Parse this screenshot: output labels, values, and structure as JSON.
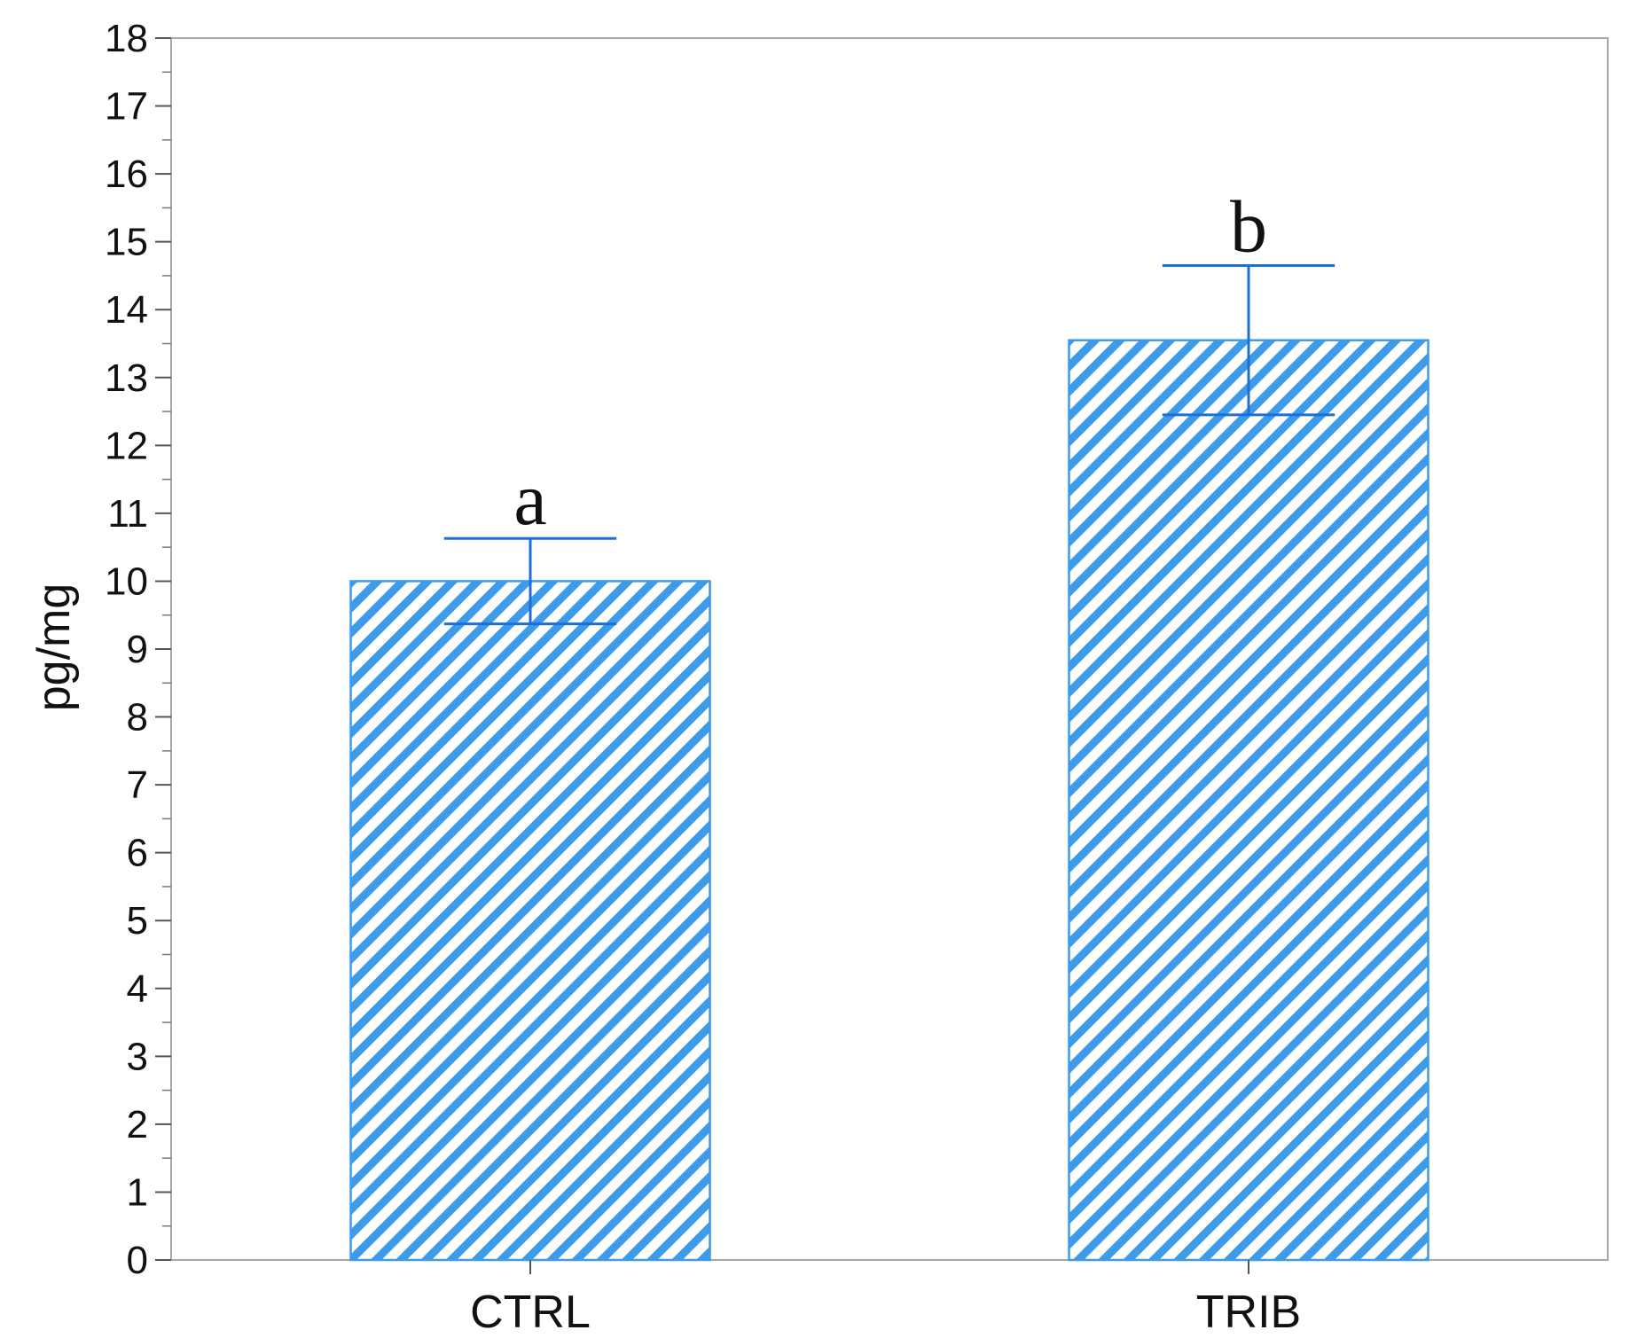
{
  "chart_data": {
    "type": "bar",
    "categories": [
      "CTRL",
      "TRIB"
    ],
    "values": [
      10.0,
      13.55
    ],
    "errors": [
      0.63,
      1.1
    ],
    "significance_labels": [
      "a",
      "b"
    ],
    "title": "",
    "xlabel": "",
    "ylabel": "pg/mg",
    "ylim": [
      0,
      18
    ],
    "yticks": [
      0,
      1,
      2,
      3,
      4,
      5,
      6,
      7,
      8,
      9,
      10,
      11,
      12,
      13,
      14,
      15,
      16,
      17,
      18
    ],
    "minor_ticks": true,
    "grid": false,
    "legend": "none",
    "bar_fill": "hatched",
    "bar_color": "#3D9BE9",
    "error_bar_color": "#1C6FD6",
    "axis_color": "#A6A6A6"
  }
}
